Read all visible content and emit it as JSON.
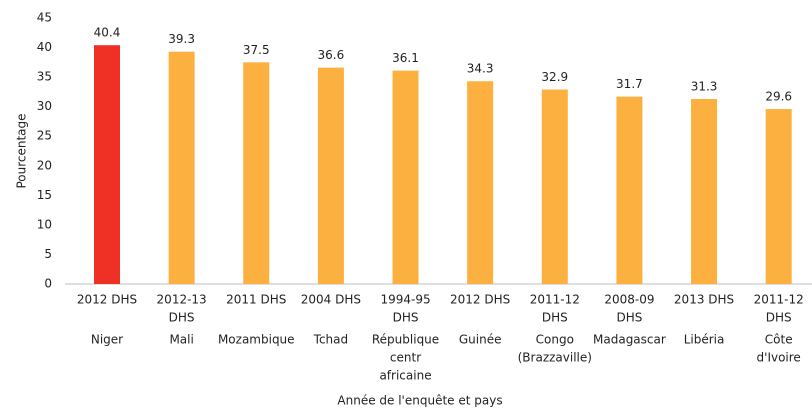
{
  "chart_data": {
    "type": "bar",
    "y_label": "Pourcentage",
    "x_label": "Année de l'enquête et pays",
    "categories": [
      {
        "survey": [
          "2012 DHS"
        ],
        "country": [
          "Niger"
        ]
      },
      {
        "survey": [
          "2012-13",
          "DHS"
        ],
        "country": [
          "Mali"
        ]
      },
      {
        "survey": [
          "2011 DHS"
        ],
        "country": [
          "Mozambique"
        ]
      },
      {
        "survey": [
          "2004 DHS"
        ],
        "country": [
          "Tchad"
        ]
      },
      {
        "survey": [
          "1994-95",
          "DHS"
        ],
        "country": [
          "République",
          "centr",
          "africaine"
        ]
      },
      {
        "survey": [
          "2012 DHS"
        ],
        "country": [
          "Guinée"
        ]
      },
      {
        "survey": [
          "2011-12",
          "DHS"
        ],
        "country": [
          "Congo",
          "(Brazzaville)"
        ]
      },
      {
        "survey": [
          "2008-09",
          "DHS"
        ],
        "country": [
          "Madagascar"
        ]
      },
      {
        "survey": [
          "2013 DHS"
        ],
        "country": [
          "Libéria"
        ]
      },
      {
        "survey": [
          "2011-12",
          "DHS"
        ],
        "country": [
          "Côte",
          "d'Ivoire"
        ]
      }
    ],
    "values": [
      40.4,
      39.3,
      37.5,
      36.6,
      36.1,
      34.3,
      32.9,
      31.7,
      31.3,
      29.6
    ],
    "colors": [
      "#ee3124",
      "#fbb040",
      "#fbb040",
      "#fbb040",
      "#fbb040",
      "#fbb040",
      "#fbb040",
      "#fbb040",
      "#fbb040",
      "#fbb040"
    ],
    "ylim": [
      0,
      45
    ],
    "yticks": [
      0,
      5,
      10,
      15,
      20,
      25,
      30,
      35,
      40,
      45
    ],
    "grid": false
  }
}
